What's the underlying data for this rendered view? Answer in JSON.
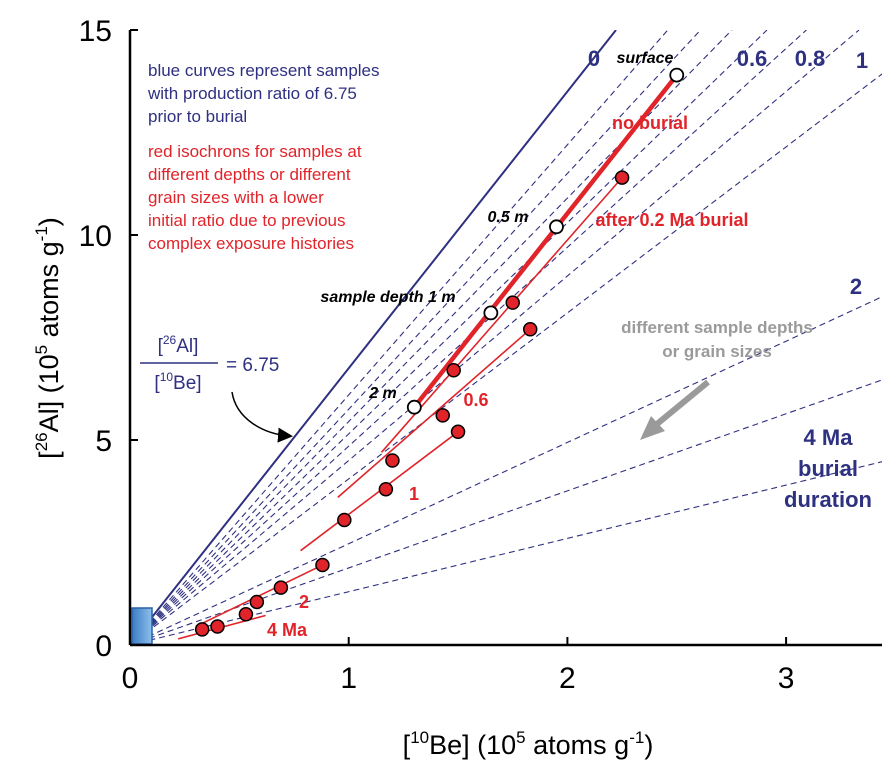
{
  "chart_data": {
    "type": "scatter",
    "xlabel": {
      "pre": "[",
      "sup1": "10",
      "mid": "Be] (10",
      "sup2": "5",
      "post": " atoms g",
      "sup3": "-1",
      "end": ")"
    },
    "ylabel": {
      "pre": "[",
      "sup1": "26",
      "mid": "Al] (10",
      "sup2": "5",
      "post": " atoms g",
      "sup3": "-1",
      "end": ")"
    },
    "xlim": [
      0,
      3.5
    ],
    "ylim": [
      0,
      15
    ],
    "xticks": [
      "0",
      "1",
      "2",
      "3"
    ],
    "yticks": [
      "0",
      "5",
      "10",
      "15"
    ],
    "production_ratio": 6.75,
    "burial_lines": [
      {
        "label": "0",
        "slope": 6.75,
        "style": "solid"
      },
      {
        "label": "",
        "slope": 6.1,
        "style": "dashed"
      },
      {
        "label": "",
        "slope": 5.75,
        "style": "dashed"
      },
      {
        "label": "",
        "slope": 5.45,
        "style": "dashed"
      },
      {
        "label": "",
        "slope": 5.15,
        "style": "dashed"
      },
      {
        "label": "0.6",
        "slope": 4.85,
        "style": "dashed"
      },
      {
        "label": "0.8",
        "slope": 4.5,
        "style": "dashed"
      },
      {
        "label": "1",
        "slope": 4.05,
        "style": "dashed"
      },
      {
        "label": "2",
        "slope": 2.47,
        "style": "dashed"
      },
      {
        "label": "",
        "slope": 1.88,
        "style": "dashed"
      },
      {
        "label": "4 Ma",
        "slope": 1.3,
        "style": "dashed"
      }
    ],
    "isochrons": [
      {
        "name": "no burial",
        "x": [
          1.3,
          2.5
        ],
        "y": [
          5.8,
          13.9
        ],
        "bold": true
      },
      {
        "name": "after 0.2 Ma burial",
        "x": [
          1.15,
          2.25
        ],
        "y": [
          4.7,
          11.4
        ],
        "bold": false
      },
      {
        "name": "0.6",
        "x": [
          0.95,
          1.83
        ],
        "y": [
          3.6,
          7.7
        ],
        "bold": false
      },
      {
        "name": "1",
        "x": [
          0.78,
          1.5
        ],
        "y": [
          2.3,
          5.2
        ],
        "bold": false
      },
      {
        "name": "2",
        "x": [
          0.3,
          0.88
        ],
        "y": [
          0.45,
          1.95
        ],
        "bold": false
      },
      {
        "name": "4 Ma",
        "x": [
          0.22,
          0.62
        ],
        "y": [
          0.15,
          0.72
        ],
        "bold": false
      }
    ],
    "open_points": [
      {
        "label": "surface",
        "x": 2.5,
        "y": 13.9
      },
      {
        "label": "0.5 m",
        "x": 1.95,
        "y": 10.2
      },
      {
        "label": "sample depth 1 m",
        "x": 1.65,
        "y": 8.1
      },
      {
        "label": "2 m",
        "x": 1.3,
        "y": 5.8
      }
    ],
    "filled_points": [
      {
        "x": 2.25,
        "y": 11.4
      },
      {
        "x": 1.75,
        "y": 8.35
      },
      {
        "x": 1.48,
        "y": 6.7
      },
      {
        "x": 1.2,
        "y": 4.5
      },
      {
        "x": 1.83,
        "y": 7.7
      },
      {
        "x": 1.43,
        "y": 5.6
      },
      {
        "x": 1.5,
        "y": 5.2
      },
      {
        "x": 1.17,
        "y": 3.8
      },
      {
        "x": 0.98,
        "y": 3.05
      },
      {
        "x": 0.88,
        "y": 1.95
      },
      {
        "x": 0.69,
        "y": 1.4
      },
      {
        "x": 0.58,
        "y": 1.05
      },
      {
        "x": 0.53,
        "y": 0.75
      },
      {
        "x": 0.4,
        "y": 0.45
      },
      {
        "x": 0.33,
        "y": 0.38
      }
    ],
    "annotations": {
      "blue_note": [
        "blue curves represent samples",
        "with production ratio of 6.75",
        "prior to burial"
      ],
      "red_note": [
        "red isochrons for samples at",
        "different depths or different",
        "grain sizes with a lower",
        "initial ratio due to previous",
        "complex exposure histories"
      ],
      "burial_duration": [
        "4 Ma",
        "burial",
        "duration"
      ],
      "grain_note": [
        "different sample depths",
        "or grain sizes"
      ],
      "eq_num": {
        "pre": "[",
        "sup": "26",
        "post": "Al]"
      },
      "eq_den": {
        "pre": "[",
        "sup": "10",
        "post": "Be]"
      },
      "eq_val": "= 6.75"
    },
    "colors": {
      "blue": "#2e3080",
      "red": "#e0242a",
      "grey": "#9a9a9a",
      "box": "#5b9bd5"
    },
    "grid": false,
    "legend": "none"
  }
}
